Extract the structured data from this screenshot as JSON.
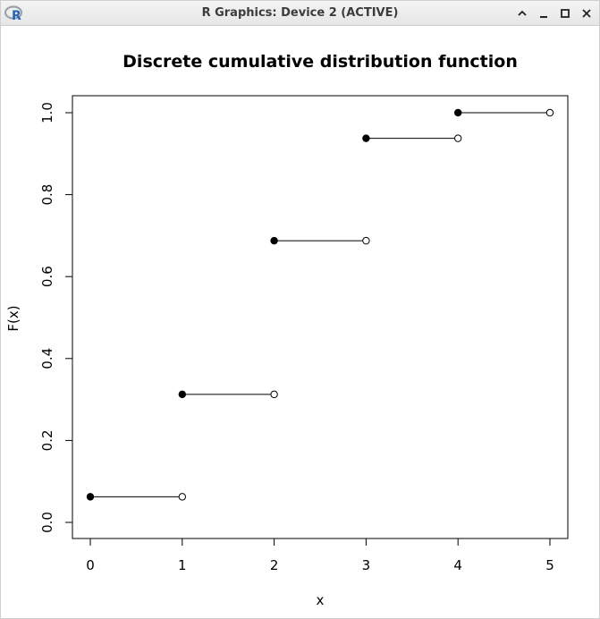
{
  "window": {
    "title": "R Graphics: Device 2 (ACTIVE)",
    "icon": "r-logo-icon",
    "icon_letter": "R",
    "controls": [
      "chevron-up-icon",
      "minimize-icon",
      "maximize-icon",
      "close-icon"
    ]
  },
  "chart_data": {
    "type": "scatter",
    "title": "Discrete cumulative distribution function",
    "xlabel": "x",
    "ylabel": "F(x)",
    "xlim": [
      0,
      5
    ],
    "ylim": [
      0,
      1
    ],
    "xticks": [
      "0",
      "1",
      "2",
      "3",
      "4",
      "5"
    ],
    "yticks": [
      "0.0",
      "0.2",
      "0.4",
      "0.6",
      "0.8",
      "1.0"
    ],
    "grid": false,
    "steps": [
      {
        "x0": 0,
        "x1": 1,
        "y": 0.0625
      },
      {
        "x0": 1,
        "x1": 2,
        "y": 0.3125
      },
      {
        "x0": 2,
        "x1": 3,
        "y": 0.6875
      },
      {
        "x0": 3,
        "x1": 4,
        "y": 0.9375
      },
      {
        "x0": 4,
        "x1": 5,
        "y": 1.0
      }
    ],
    "point_color": "#000000"
  }
}
